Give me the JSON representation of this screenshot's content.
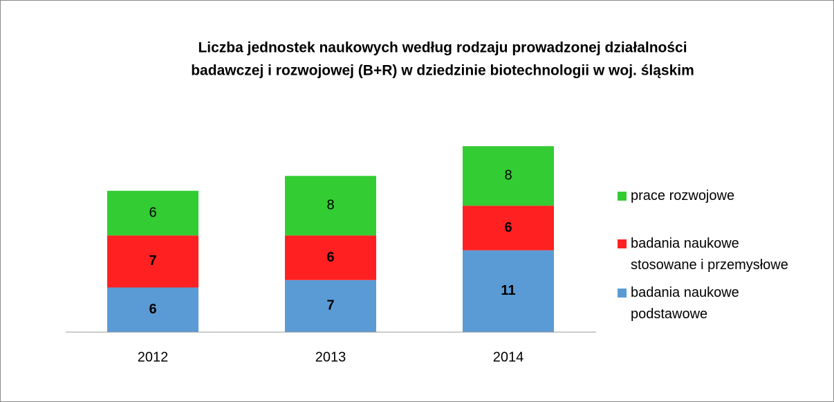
{
  "chart_data": {
    "type": "stacked_bar",
    "title": [
      "Liczba jednostek naukowych według rodzaju prowadzonej działalności",
      "badawczej i rozwojowej (B+R) w dziedzinie biotechnologii  w woj. śląskim"
    ],
    "categories": [
      "2012",
      "2013",
      "2014"
    ],
    "series": [
      {
        "name": "badania naukowe podstawowe",
        "color": "#5b9bd5",
        "bold_labels": true,
        "values": [
          6,
          7,
          11
        ]
      },
      {
        "name": "badania naukowe stosowane i przemysłowe",
        "color": "#ff2121",
        "bold_labels": true,
        "values": [
          7,
          6,
          6
        ]
      },
      {
        "name": "prace rozwojowe",
        "color": "#33cc33",
        "bold_labels": false,
        "values": [
          6,
          8,
          8
        ]
      }
    ],
    "legend": "right"
  }
}
